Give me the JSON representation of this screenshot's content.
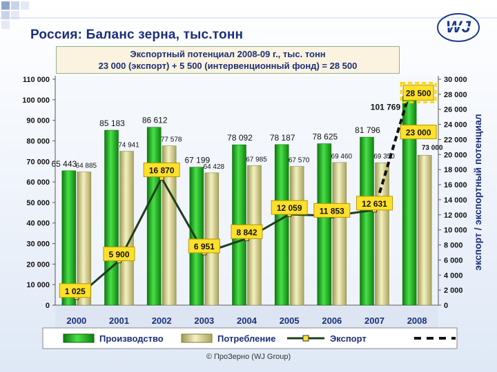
{
  "title": "Россия: Баланс зерна, тыс.тонн",
  "subtitle_line1": "Экспортный потенциал 2008-09 г., тыс. тонн",
  "subtitle_line2": "23 000 (экспорт) + 5 500 (интервенционный фонд) = 28 500",
  "footer": "© ПроЗерно  (WJ Group)",
  "logo_text": "WJ",
  "colors": {
    "production": "#1fb31f",
    "consumption": "#d9d58a",
    "export_line": "#1e3d1e",
    "label_yellow": "#ffe02a",
    "potential_border": "#ffd400"
  },
  "chart_data": {
    "type": "bar",
    "categories": [
      "2000",
      "2001",
      "2002",
      "2003",
      "2004",
      "2005",
      "2006",
      "2007",
      "2008"
    ],
    "left_axis": {
      "min": 0,
      "max": 110000,
      "step": 10000,
      "ticks": [
        "0",
        "10 000",
        "20 000",
        "30 000",
        "40 000",
        "50 000",
        "60 000",
        "70 000",
        "80 000",
        "90 000",
        "100 000",
        "110 000"
      ]
    },
    "right_axis": {
      "min": 0,
      "max": 30000,
      "step": 2000,
      "label": "экспорт / экспортный потенциал",
      "ticks": [
        "0",
        "2 000",
        "4 000",
        "6 000",
        "8 000",
        "10 000",
        "12 000",
        "14 000",
        "16 000",
        "18 000",
        "20 000",
        "22 000",
        "24 000",
        "26 000",
        "28 000",
        "30 000"
      ]
    },
    "series": [
      {
        "name": "Производство",
        "axis": "left",
        "values": [
          65443,
          85183,
          86612,
          67199,
          78092,
          78187,
          78625,
          81796,
          101769
        ],
        "labels": [
          "65 443",
          "85 183",
          "86 612",
          "67 199",
          "78 092",
          "78 187",
          "78 625",
          "81 796",
          "101 769"
        ]
      },
      {
        "name": "Потребление",
        "axis": "left",
        "values": [
          64885,
          74941,
          77578,
          64428,
          67985,
          67570,
          69460,
          69350,
          73000
        ],
        "labels": [
          "64 885",
          "74 941",
          "77 578",
          "64 428",
          "67 985",
          "67 570",
          "69 460",
          "69 350",
          "73 000"
        ]
      },
      {
        "name": "Экспорт",
        "axis": "right",
        "values": [
          1025,
          5900,
          16870,
          6951,
          8842,
          12059,
          11853,
          12631,
          23000
        ],
        "labels": [
          "1 025",
          "5 900",
          "16 870",
          "6 951",
          "8 842",
          "12 059",
          "11 853",
          "12 631",
          "23 000"
        ]
      }
    ],
    "export_potential": {
      "category": "2008",
      "value": 28500,
      "label": "28 500"
    },
    "legend": [
      "Производство",
      "Потребление",
      "Экспорт"
    ],
    "legend_position": "bottom",
    "grid": false
  }
}
